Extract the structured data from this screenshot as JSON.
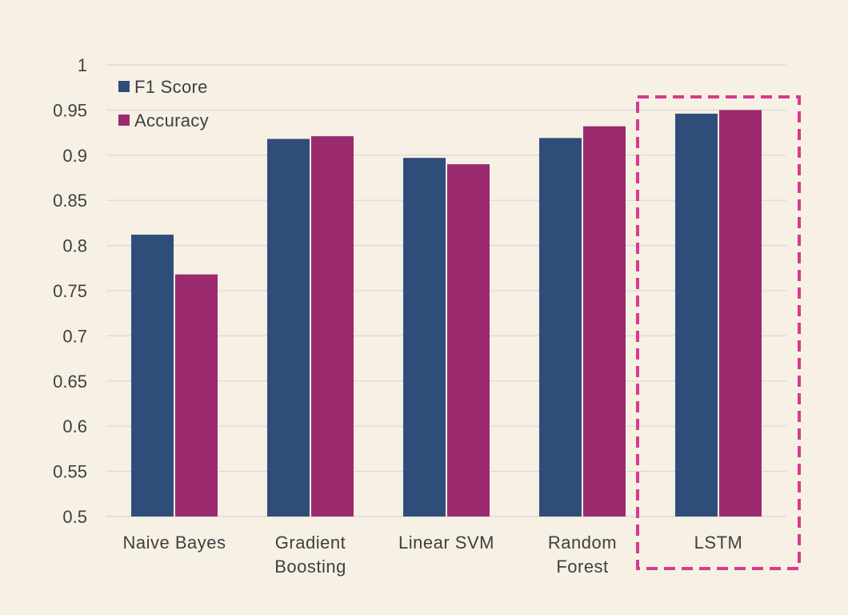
{
  "colors": {
    "background": "#F6F0E5",
    "grid": "#D9D9D9",
    "f1": "#2F4D79",
    "accuracy": "#9B2B6E",
    "highlight": "#D93A8E"
  },
  "chart_data": {
    "type": "bar",
    "categories": [
      [
        "Naive Bayes"
      ],
      [
        "Gradient",
        "Boosting"
      ],
      [
        "Linear SVM"
      ],
      [
        "Random",
        "Forest"
      ],
      [
        "LSTM"
      ]
    ],
    "series": [
      {
        "name": "F1 Score",
        "color": "#2F4D79",
        "values": [
          0.812,
          0.918,
          0.897,
          0.919,
          0.946
        ]
      },
      {
        "name": "Accuracy",
        "color": "#9B2B6E",
        "values": [
          0.768,
          0.921,
          0.89,
          0.932,
          0.95
        ]
      }
    ],
    "ylim": [
      0.5,
      1
    ],
    "yticks": [
      "0.5",
      "0.55",
      "0.6",
      "0.65",
      "0.7",
      "0.75",
      "0.8",
      "0.85",
      "0.9",
      "0.95",
      "1"
    ],
    "grid": true,
    "legend": "top-left",
    "highlight_category": "LSTM"
  }
}
